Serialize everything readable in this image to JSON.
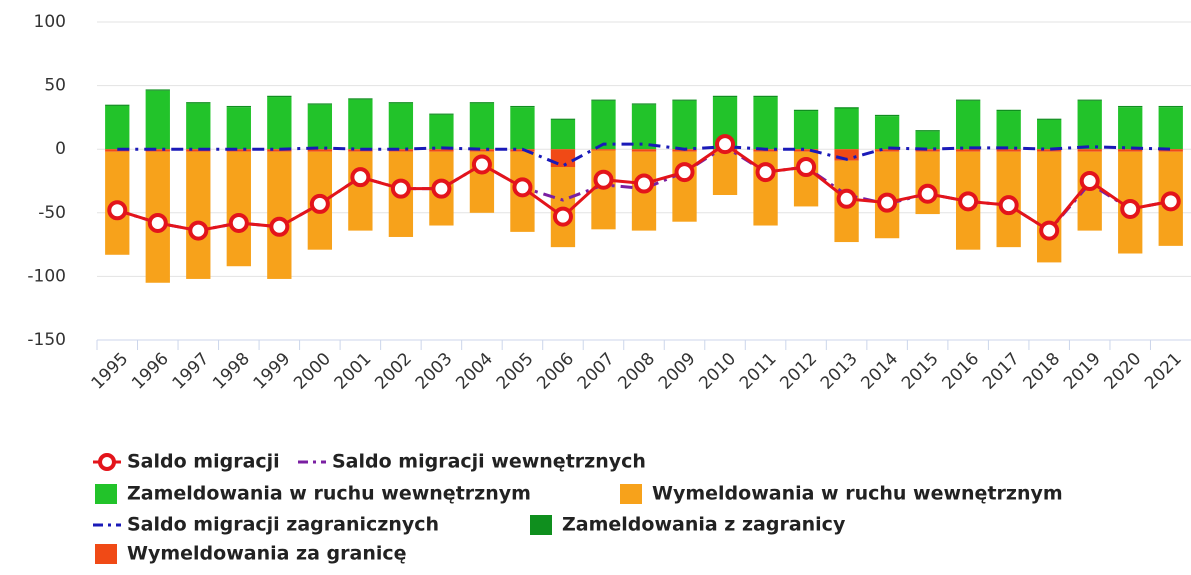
{
  "chart_data": {
    "type": "bar",
    "categories": [
      "1995",
      "1996",
      "1997",
      "1998",
      "1999",
      "2000",
      "2001",
      "2002",
      "2003",
      "2004",
      "2005",
      "2006",
      "2007",
      "2008",
      "2009",
      "2010",
      "2011",
      "2012",
      "2013",
      "2014",
      "2015",
      "2016",
      "2017",
      "2018",
      "2019",
      "2020",
      "2021"
    ],
    "ylim": [
      -150,
      100
    ],
    "yticks": [
      -150,
      -100,
      -50,
      0,
      50,
      100
    ],
    "grid": true,
    "series": [
      {
        "name": "Saldo migracji",
        "type": "line",
        "color": "#e3141b",
        "values": [
          -48,
          -58,
          -64,
          -58,
          -61,
          -43,
          -22,
          -31,
          -31,
          -12,
          -30,
          -53,
          -24,
          -27,
          -18,
          4,
          -18,
          -14,
          -39,
          -42,
          -35,
          -41,
          -44,
          -64,
          -25,
          -47,
          -41
        ]
      },
      {
        "name": "Saldo migracji wewnętrznych",
        "type": "line",
        "dash": true,
        "color": "#7a1fa2",
        "values": [
          -48,
          -58,
          -64,
          -58,
          -61,
          -43,
          -22,
          -31,
          -31,
          -12,
          -30,
          -40,
          -28,
          -31,
          -18,
          2,
          -18,
          -14,
          -36,
          -43,
          -35,
          -41,
          -44,
          -64,
          -27,
          -47,
          -41
        ]
      },
      {
        "name": "Zameldowania w ruchu wewnętrznym",
        "type": "bar",
        "color": "#22c32a",
        "values": [
          34,
          46,
          36,
          33,
          41,
          35,
          39,
          36,
          27,
          36,
          33,
          23,
          38,
          35,
          38,
          41,
          41,
          30,
          32,
          26,
          14,
          38,
          30,
          23,
          38,
          33,
          33
        ]
      },
      {
        "name": "Wymeldowania w ruchu wewnętrznym",
        "type": "bar",
        "color": "#f7a21b",
        "values": [
          -81,
          -103,
          -100,
          -90,
          -100,
          -77,
          -62,
          -67,
          -58,
          -48,
          -63,
          -63,
          -62,
          -62,
          -55,
          -34,
          -58,
          -43,
          -64,
          -68,
          -49,
          -77,
          -75,
          -87,
          -62,
          -80,
          -74
        ]
      },
      {
        "name": "Saldo migracji zagranicznych",
        "type": "line",
        "dash": true,
        "color": "#1a1ab8",
        "values": [
          0,
          0,
          0,
          0,
          0,
          1,
          0,
          0,
          1,
          0,
          0,
          -13,
          4,
          4,
          0,
          2,
          0,
          0,
          -8,
          1,
          0,
          1,
          1,
          0,
          2,
          1,
          0
        ]
      },
      {
        "name": "Zameldowania z zagranicy",
        "type": "bar",
        "color": "#0f8f1e",
        "values": [
          1,
          1,
          1,
          1,
          1,
          1,
          1,
          1,
          1,
          1,
          1,
          1,
          1,
          1,
          1,
          1,
          1,
          1,
          1,
          1,
          1,
          1,
          1,
          1,
          1,
          1,
          1
        ]
      },
      {
        "name": "Wymeldowania za granicę",
        "type": "bar",
        "color": "#f04a16",
        "values": [
          -2,
          -2,
          -2,
          -2,
          -2,
          -2,
          -2,
          -2,
          -2,
          -2,
          -2,
          -14,
          -1,
          -2,
          -2,
          -2,
          -2,
          -2,
          -9,
          -2,
          -2,
          -2,
          -2,
          -2,
          -2,
          -2,
          -2
        ]
      }
    ]
  }
}
